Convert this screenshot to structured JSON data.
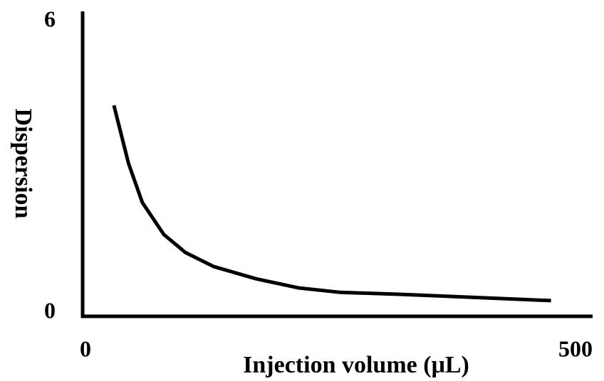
{
  "chart_data": {
    "type": "line",
    "x_label": "Injection volume (μL)",
    "y_label": "Dispersion",
    "x": [
      29,
      44,
      58,
      80,
      102,
      131,
      174,
      218,
      260,
      320,
      392,
      475
    ],
    "series": [
      {
        "color": "#000000",
        "values": [
          4.27,
          3.07,
          2.27,
          1.61,
          1.24,
          0.95,
          0.7,
          0.51,
          0.42,
          0.38,
          0.32,
          0.25
        ]
      }
    ],
    "xlim": [
      0,
      500
    ],
    "xticks": [
      0,
      500
    ],
    "ylim": [
      0,
      6
    ],
    "yticks": [
      0,
      6
    ],
    "grid": false
  }
}
